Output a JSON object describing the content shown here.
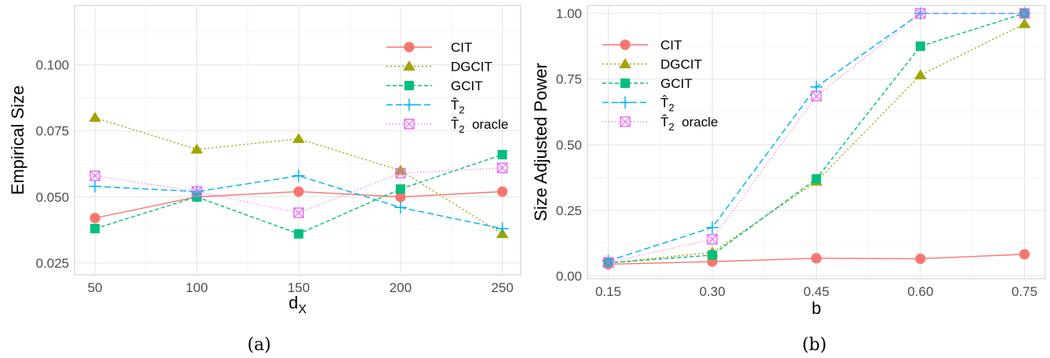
{
  "series_styles": [
    {
      "name": "CIT",
      "color": "#F8766D",
      "dash": "",
      "marker": "circle"
    },
    {
      "name": "DGCIT",
      "color": "#A3A500",
      "dash": "2,3",
      "marker": "triangle"
    },
    {
      "name": "GCIT",
      "color": "#00BF7D",
      "dash": "5,3",
      "marker": "square"
    },
    {
      "name": "T2",
      "color": "#00B0F6",
      "dash": "8,4",
      "marker": "plus"
    },
    {
      "name": "T2 oracle",
      "color": "#E76BF3",
      "dash": "1,3",
      "marker": "boxcross"
    }
  ],
  "chart_data": [
    {
      "type": "line",
      "caption": "(a)",
      "xlabel": "dX",
      "ylabel": "Empirical Size",
      "x": [
        50,
        100,
        150,
        200,
        250
      ],
      "x_tick_labels": [
        "50",
        "100",
        "150",
        "200",
        "250"
      ],
      "xlim": [
        40,
        259
      ],
      "ylim": [
        0.0205,
        0.1225
      ],
      "y_ticks": [
        0.025,
        0.05,
        0.075,
        0.1
      ],
      "y_tick_labels": [
        "0.025",
        "0.050",
        "0.075",
        "0.100"
      ],
      "legend_position": "right",
      "grid": true,
      "series": [
        {
          "name": "CIT",
          "values": [
            0.042,
            0.05,
            0.052,
            0.05,
            0.052
          ]
        },
        {
          "name": "DGCIT",
          "values": [
            0.08,
            0.068,
            0.072,
            0.06,
            0.036
          ]
        },
        {
          "name": "GCIT",
          "values": [
            0.038,
            0.05,
            0.036,
            0.053,
            0.066
          ]
        },
        {
          "name": "T2",
          "values": [
            0.054,
            0.052,
            0.058,
            0.046,
            0.038
          ]
        },
        {
          "name": "T2 oracle",
          "values": [
            0.058,
            0.052,
            0.044,
            0.059,
            0.061
          ]
        }
      ]
    },
    {
      "type": "line",
      "caption": "(b)",
      "xlabel": "b",
      "ylabel": "Size Adjusted Power",
      "x": [
        0.15,
        0.3,
        0.45,
        0.6,
        0.75
      ],
      "x_tick_labels": [
        "0.15",
        "0.30",
        "0.45",
        "0.60",
        "0.75"
      ],
      "xlim": [
        0.12,
        0.78
      ],
      "ylim": [
        -0.01,
        1.03
      ],
      "y_ticks": [
        0,
        0.25,
        0.5,
        0.75,
        1
      ],
      "y_tick_labels": [
        "0.00",
        "0.25",
        "0.50",
        "0.75",
        "1.00"
      ],
      "legend_position": "top-left",
      "grid": true,
      "series": [
        {
          "name": "CIT",
          "values": [
            0.045,
            0.055,
            0.068,
            0.066,
            0.083
          ]
        },
        {
          "name": "DGCIT",
          "values": [
            0.05,
            0.09,
            0.36,
            0.765,
            0.96
          ]
        },
        {
          "name": "GCIT",
          "values": [
            0.05,
            0.08,
            0.37,
            0.875,
            1.0
          ]
        },
        {
          "name": "T2",
          "values": [
            0.058,
            0.185,
            0.72,
            1.0,
            1.0
          ]
        },
        {
          "name": "T2 oracle",
          "values": [
            0.052,
            0.14,
            0.685,
            1.0,
            1.0
          ]
        }
      ]
    }
  ]
}
